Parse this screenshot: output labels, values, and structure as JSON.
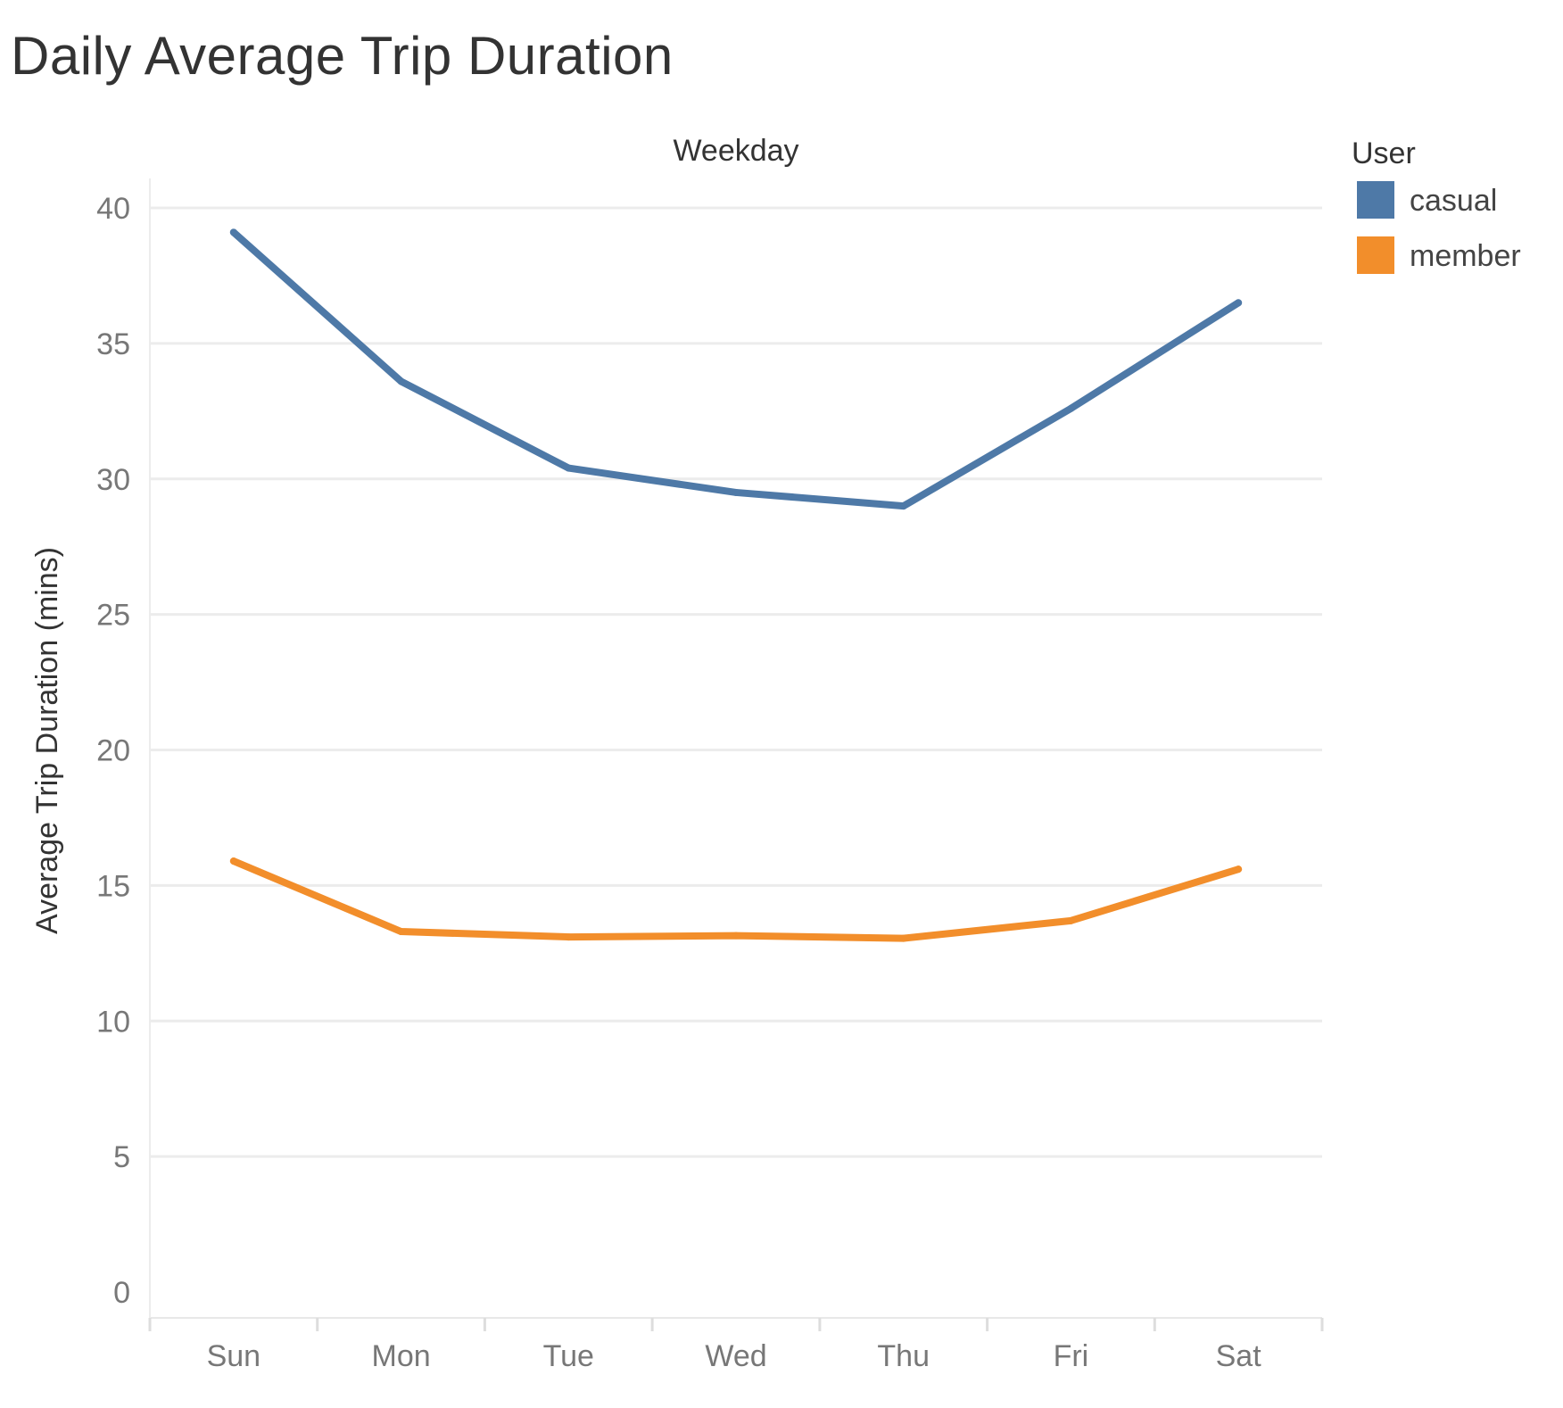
{
  "title": "Daily Average Trip Duration",
  "chart_data": {
    "type": "line",
    "title": "Daily Average Trip Duration",
    "xlabel": "Weekday",
    "ylabel": "Average Trip Duration (mins)",
    "categories": [
      "Sun",
      "Mon",
      "Tue",
      "Wed",
      "Thu",
      "Fri",
      "Sat"
    ],
    "ylim": [
      0,
      40
    ],
    "yticks": [
      "0",
      "5",
      "10",
      "15",
      "20",
      "25",
      "30",
      "35",
      "40"
    ],
    "grid": true,
    "legend": {
      "title": "User",
      "placement": "top-right"
    },
    "series": [
      {
        "name": "casual",
        "color": "#4e79a7",
        "values": [
          39.1,
          33.6,
          30.4,
          29.5,
          29.0,
          32.6,
          36.5
        ]
      },
      {
        "name": "member",
        "color": "#f28e2b",
        "values": [
          15.9,
          13.3,
          13.1,
          13.15,
          13.05,
          13.7,
          15.6
        ]
      }
    ]
  }
}
